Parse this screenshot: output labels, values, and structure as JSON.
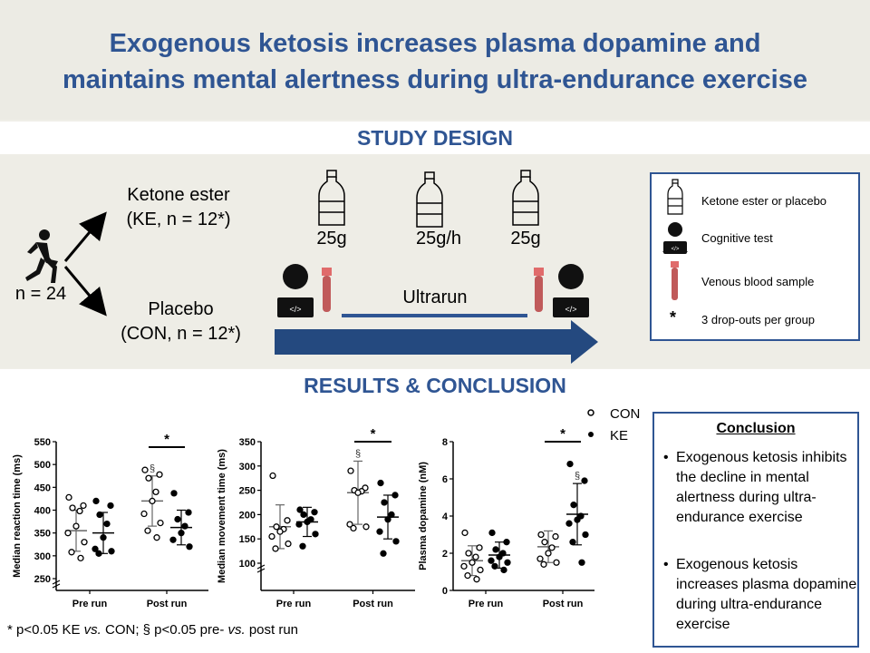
{
  "title_line1": "Exogenous ketosis increases plasma dopamine and",
  "title_line2": "maintains mental alertness during ultra-endurance exercise",
  "study_design": {
    "heading": "STUDY DESIGN",
    "n_total": "n = 24",
    "ke_line1": "Ketone ester",
    "ke_line2": "(KE, n = 12*)",
    "con_line1": "Placebo",
    "con_line2": "(CON, n = 12*)",
    "dose1": "25g",
    "dose2": "25g/h",
    "dose3": "25g",
    "ultrarun": "Ultrarun",
    "legend": {
      "bottle": "Ketone ester or placebo",
      "cognitive": "Cognitive test",
      "blood": "Venous blood sample",
      "star": "*",
      "dropouts": "3 drop-outs per group"
    }
  },
  "results": {
    "heading": "RESULTS & CONCLUSION",
    "legend_con": "CON",
    "legend_ke": "KE",
    "footnote_a": "* p<0.05 KE ",
    "footnote_vs1": "vs.",
    "footnote_b": " CON; § p<0.05 pre- ",
    "footnote_vs2": "vs.",
    "footnote_c": " post run",
    "conclusion_title": "Conclusion",
    "bullet_symbol": "•",
    "bullets": [
      "Exogenous ketosis inhibits the decline in mental alertness during ultra-endurance exercise",
      "Exogenous ketosis increases plasma dopamine during ultra-endurance exercise"
    ]
  },
  "chart_data": [
    {
      "type": "scatter",
      "ylabel": "Median reaction time (ms)",
      "categories": [
        "Pre run",
        "Post run"
      ],
      "ylim": [
        250,
        550
      ],
      "yticks": [
        250,
        300,
        350,
        400,
        450,
        500,
        550
      ],
      "series": [
        {
          "name": "CON",
          "groups": [
            {
              "category": "Pre run",
              "mean": 355,
              "sd": 45,
              "points": [
                428,
                410,
                405,
                398,
                365,
                350,
                330,
                308,
                295
              ]
            },
            {
              "category": "Post run",
              "mean": 420,
              "sd": 55,
              "points": [
                488,
                478,
                470,
                440,
                420,
                392,
                372,
                355,
                340
              ]
            }
          ]
        },
        {
          "name": "KE",
          "groups": [
            {
              "category": "Pre run",
              "mean": 350,
              "sd": 45,
              "points": [
                420,
                410,
                390,
                370,
                340,
                315,
                310,
                305
              ]
            },
            {
              "category": "Post run",
              "mean": 362,
              "sd": 38,
              "points": [
                437,
                395,
                380,
                365,
                350,
                335,
                320
              ]
            }
          ]
        }
      ],
      "annotations": [
        {
          "text": "*",
          "between": [
            "CON Post run",
            "KE Post run"
          ]
        },
        {
          "text": "§",
          "target": "CON Post run"
        }
      ]
    },
    {
      "type": "scatter",
      "ylabel": "Median movement time (ms)",
      "categories": [
        "Pre run",
        "Post run"
      ],
      "ylim": [
        100,
        350
      ],
      "yticks": [
        100,
        150,
        200,
        250,
        300,
        350
      ],
      "series": [
        {
          "name": "CON",
          "groups": [
            {
              "category": "Pre run",
              "mean": 175,
              "sd": 45,
              "points": [
                280,
                188,
                175,
                170,
                165,
                155,
                140,
                130
              ]
            },
            {
              "category": "Post run",
              "mean": 245,
              "sd": 65,
              "points": [
                290,
                255,
                250,
                248,
                245,
                180,
                175,
                172
              ]
            }
          ]
        },
        {
          "name": "KE",
          "groups": [
            {
              "category": "Pre run",
              "mean": 185,
              "sd": 30,
              "points": [
                210,
                205,
                200,
                190,
                185,
                180,
                160,
                135
              ]
            },
            {
              "category": "Post run",
              "mean": 195,
              "sd": 45,
              "points": [
                265,
                240,
                225,
                200,
                190,
                165,
                145,
                120
              ]
            }
          ]
        }
      ],
      "annotations": [
        {
          "text": "*",
          "between": [
            "CON Post run",
            "KE Post run"
          ]
        },
        {
          "text": "§",
          "target": "CON Post run"
        }
      ]
    },
    {
      "type": "scatter",
      "ylabel": "Plasma dopamine (nM)",
      "categories": [
        "Pre run",
        "Post run"
      ],
      "ylim": [
        0,
        8
      ],
      "yticks": [
        0,
        2,
        4,
        6,
        8
      ],
      "series": [
        {
          "name": "CON",
          "groups": [
            {
              "category": "Pre run",
              "mean": 1.6,
              "sd": 0.8,
              "points": [
                3.1,
                2.3,
                2.0,
                1.8,
                1.5,
                1.3,
                1.1,
                0.8,
                0.6
              ]
            },
            {
              "category": "Post run",
              "mean": 2.35,
              "sd": 0.85,
              "points": [
                3.0,
                2.9,
                2.6,
                2.3,
                2.0,
                1.7,
                1.5,
                1.4
              ]
            }
          ]
        },
        {
          "name": "KE",
          "groups": [
            {
              "category": "Pre run",
              "mean": 1.9,
              "sd": 0.7,
              "points": [
                3.1,
                2.6,
                2.2,
                2.0,
                1.8,
                1.6,
                1.5,
                1.3,
                1.1
              ]
            },
            {
              "category": "Post run",
              "mean": 4.1,
              "sd": 1.65,
              "points": [
                6.8,
                5.9,
                4.6,
                4.0,
                3.8,
                3.6,
                3.0,
                2.6,
                1.5
              ]
            }
          ]
        }
      ],
      "annotations": [
        {
          "text": "*",
          "between": [
            "CON Post run",
            "KE Post run"
          ]
        },
        {
          "text": "§",
          "target": "KE Post run"
        }
      ]
    }
  ]
}
